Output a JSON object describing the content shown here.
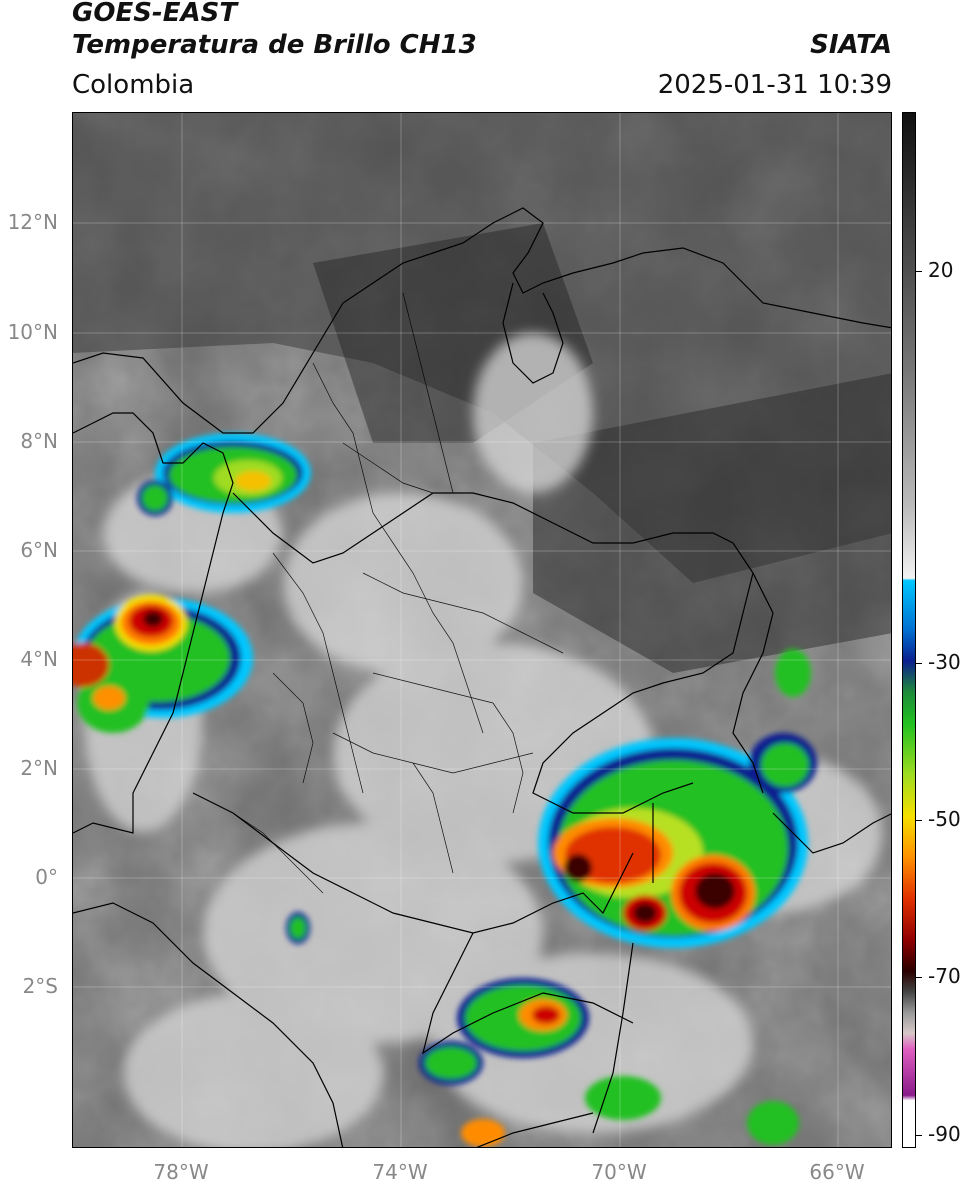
{
  "header": {
    "title_line1": "GOES-EAST",
    "title_line2": "Temperatura de Brillo CH13",
    "brand": "SIATA",
    "region": "Colombia",
    "datetime": "2025-01-31 10:39"
  },
  "map": {
    "lat_ticks": [
      "12°N",
      "10°N",
      "8°N",
      "6°N",
      "4°N",
      "2°N",
      "0°",
      "2°S"
    ],
    "lon_ticks": [
      "78°W",
      "74°W",
      "70°W",
      "66°W"
    ],
    "extent": {
      "lon_min": -80,
      "lon_max": -65,
      "lat_min": -4.8,
      "lat_max": 14.2
    }
  },
  "colorbar": {
    "labels": [
      "20",
      "-30",
      "-50",
      "-70",
      "-90"
    ],
    "colors": {
      "gray_light": "#d9d9d9",
      "gray_dark": "#222222",
      "cyan": "#00c8ff",
      "blue": "#0a1f8f",
      "green": "#20c020",
      "yellow": "#f5e000",
      "red": "#cc0000",
      "dark_red": "#3a0000",
      "pink": "#e060c0",
      "purple": "#8a1a8a"
    }
  }
}
